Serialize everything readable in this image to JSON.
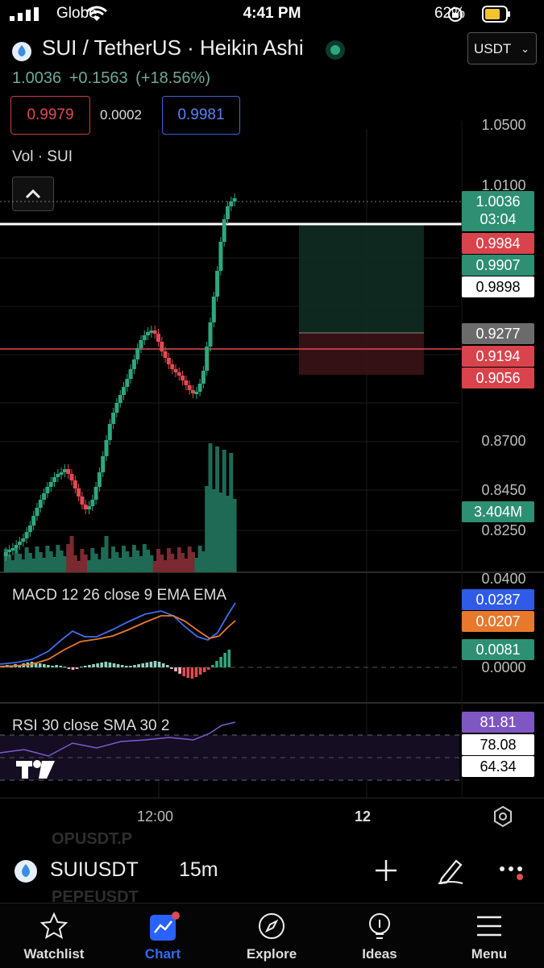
{
  "status_bar": {
    "carrier": "Globe",
    "time": "4:41 PM",
    "battery": "62%"
  },
  "header": {
    "symbol_title": "SUI / TetherUS · Heikin Ashi",
    "last": "1.0036",
    "change": "+0.1563",
    "change_pct": "(+18.56%)",
    "bid": "0.9979",
    "spread": "0.0002",
    "ask": "0.9981",
    "currency": "USDT",
    "volume_label": "Vol · SUI"
  },
  "price_axis": {
    "labels": [
      "1.0500",
      "1.0100",
      "0.8700",
      "0.8450",
      "0.8250",
      "0.0400"
    ],
    "tags": {
      "last_price": "1.0036",
      "countdown": "03:04",
      "red_top": "0.9984",
      "green": "0.9907",
      "white": "0.9898",
      "grey": "0.9277",
      "red_mid": "0.9194",
      "red_low": "0.9056",
      "volume": "3.404M"
    }
  },
  "macd": {
    "label": "MACD 12 26 close 9 EMA EMA",
    "macd_value": "0.0287",
    "signal_value": "0.0207",
    "hist_value": "0.0081",
    "zero_label": "0.0000"
  },
  "rsi": {
    "label": "RSI 30 close SMA 30 2",
    "value": "81.81",
    "upper": "78.08",
    "lower": "64.34"
  },
  "time_axis": {
    "labels": [
      "12:00",
      "12"
    ]
  },
  "symbol_bar": {
    "symbol": "SUIUSDT",
    "interval": "15m",
    "ghost_top": "OPUSDT.P",
    "ghost_bottom": "PEPEUSDT"
  },
  "bottom_nav": [
    {
      "label": "Watchlist",
      "icon": "star-icon"
    },
    {
      "label": "Chart",
      "icon": "chart-icon"
    },
    {
      "label": "Explore",
      "icon": "compass-icon"
    },
    {
      "label": "Ideas",
      "icon": "lightbulb-icon"
    },
    {
      "label": "Menu",
      "icon": "menu-icon"
    }
  ],
  "colors": {
    "up": "#2fa77e",
    "down": "#e04a52",
    "macd_line": "#3d6ef0",
    "signal_line": "#e8782c",
    "rsi": "#7e5ad0",
    "accent": "#2962ff"
  }
}
